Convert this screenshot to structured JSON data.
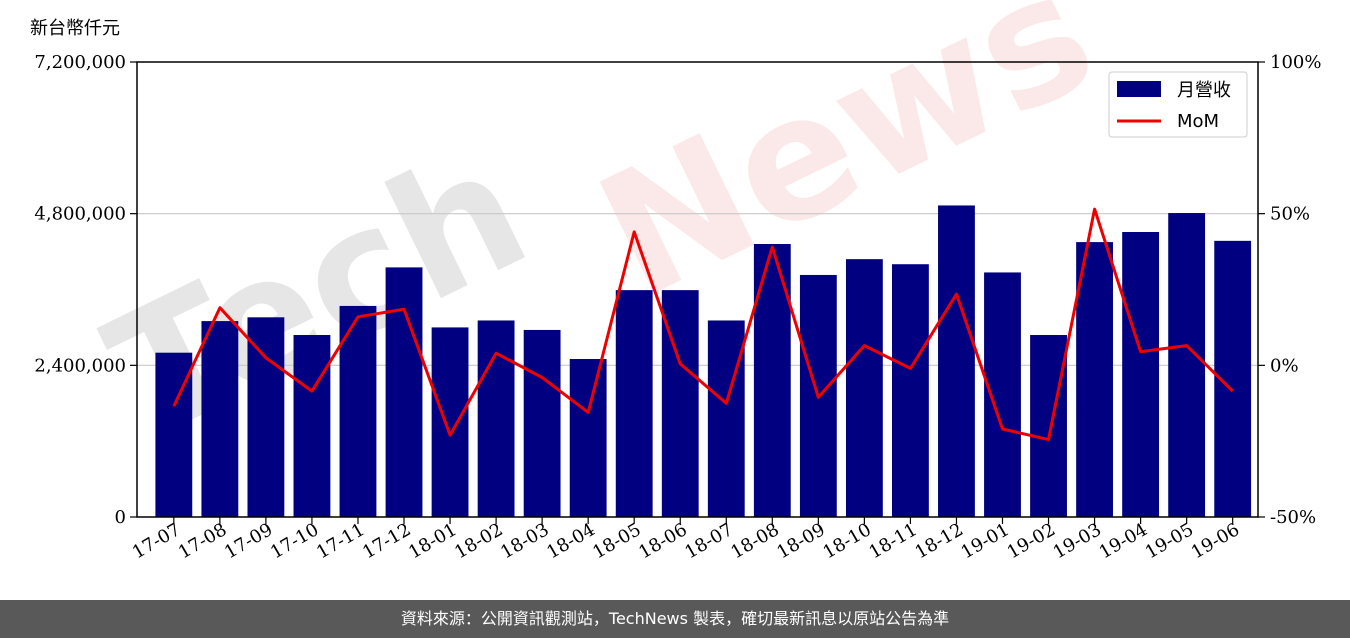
{
  "unit_label": "新台幣仟元",
  "footer_text": "資料來源：公開資訊觀測站，TechNews 製表，確切最新訊息以原站公告為準",
  "watermark": {
    "part1": "Tech",
    "part2": "News"
  },
  "colors": {
    "bar": "#000080",
    "line": "#ee0000",
    "footer_bg": "#595959",
    "grid": "#c8c8c8",
    "watermark1": "#e6e6e6",
    "watermark2": "#fbe8e8"
  },
  "chart_data": {
    "type": "bar",
    "categories": [
      "17-07",
      "17-08",
      "17-09",
      "17-10",
      "17-11",
      "17-12",
      "18-01",
      "18-02",
      "18-03",
      "18-04",
      "18-05",
      "18-06",
      "18-07",
      "18-08",
      "18-09",
      "18-10",
      "18-11",
      "18-12",
      "19-01",
      "19-02",
      "19-03",
      "19-04",
      "19-05",
      "19-06"
    ],
    "series": [
      {
        "name": "月營收",
        "type": "bar",
        "axis": "left",
        "values": [
          2600000,
          3100000,
          3160000,
          2880000,
          3340000,
          3950000,
          3000000,
          3110000,
          2960000,
          2500000,
          3590000,
          3590000,
          3110000,
          4320000,
          3830000,
          4080000,
          4000000,
          4930000,
          3870000,
          2880000,
          4350000,
          4510000,
          4810000,
          4370000
        ]
      },
      {
        "name": "MoM",
        "type": "line",
        "axis": "right",
        "values": [
          -13.5,
          19.0,
          2.5,
          -8.5,
          16.0,
          18.5,
          -23.0,
          4.0,
          -4.0,
          -15.5,
          44.0,
          0.5,
          -12.5,
          39.0,
          -10.5,
          6.5,
          -1.0,
          23.5,
          -21.0,
          -24.5,
          51.5,
          4.5,
          6.5,
          -8.5
        ]
      }
    ],
    "y_left": {
      "ylim": [
        0,
        7200000
      ],
      "ticks": [
        "0",
        "2,400,000",
        "4,800,000",
        "7,200,000"
      ],
      "tick_values": [
        0,
        2400000,
        4800000,
        7200000
      ]
    },
    "y_right": {
      "ylim": [
        -50,
        100
      ],
      "ticks": [
        "-50%",
        "0%",
        "50%",
        "100%"
      ],
      "tick_values": [
        -50,
        0,
        50,
        100
      ]
    },
    "grid": true,
    "legend": {
      "placement": "top-right",
      "entries": [
        "月營收",
        "MoM"
      ]
    }
  }
}
